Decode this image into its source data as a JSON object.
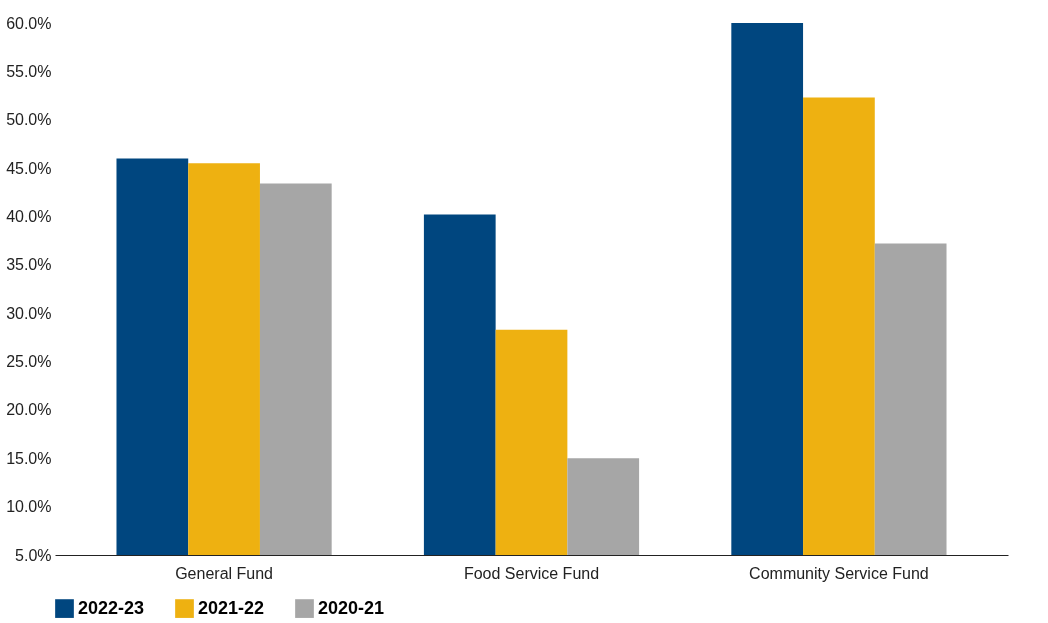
{
  "chart_data": {
    "type": "bar",
    "categories": [
      "General Fund",
      "Food Service Fund",
      "Community Service Fund"
    ],
    "series": [
      {
        "name": "2022-23",
        "color": "#00467f",
        "values": [
          46.0,
          40.2,
          60.0
        ]
      },
      {
        "name": "2021-22",
        "color": "#eeb111",
        "values": [
          45.5,
          28.3,
          52.3
        ]
      },
      {
        "name": "2020-21",
        "color": "#a6a6a6",
        "values": [
          43.4,
          15.0,
          37.2
        ]
      }
    ],
    "ylim": [
      5,
      60
    ],
    "yticks": [
      {
        "value": 5,
        "label": "5.0%"
      },
      {
        "value": 10,
        "label": "10.0%"
      },
      {
        "value": 15,
        "label": "15.0%"
      },
      {
        "value": 20,
        "label": "20.0%"
      },
      {
        "value": 25,
        "label": "25.0%"
      },
      {
        "value": 30,
        "label": "30.0%"
      },
      {
        "value": 35,
        "label": "35.0%"
      },
      {
        "value": 40,
        "label": "40.0%"
      },
      {
        "value": 45,
        "label": "45.0%"
      },
      {
        "value": 50,
        "label": "50.0%"
      },
      {
        "value": 55,
        "label": "55.0%"
      },
      {
        "value": 60,
        "label": "60.0%"
      }
    ],
    "grid": false,
    "legend": "bottom"
  }
}
